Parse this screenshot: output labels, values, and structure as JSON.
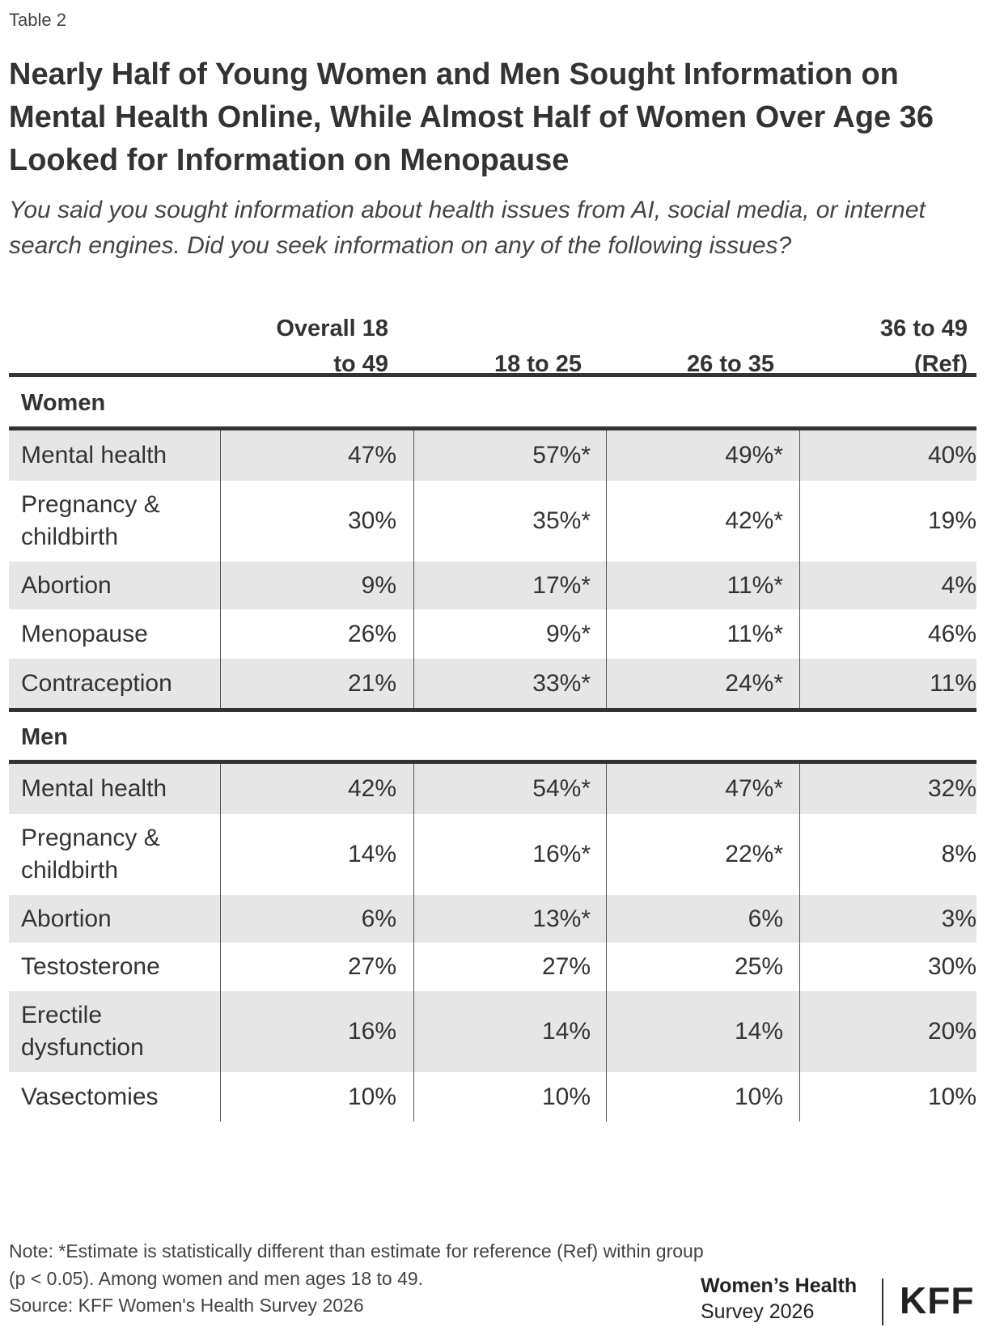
{
  "header": {
    "table_label": "Table 2",
    "title": "Nearly Half of Young Women and Men Sought Information on Mental Health Online, While Almost Half of Women Over Age 36 Looked for Information on Menopause",
    "subtitle": "You said you sought information about health issues from AI, social media, or internet search engines. Did you seek information on any of the following issues?"
  },
  "columns": [
    {
      "line1": "Overall 18",
      "line2": "to 49"
    },
    {
      "line1": "",
      "line2": "18 to 25"
    },
    {
      "line1": "",
      "line2": "26 to 35"
    },
    {
      "line1": "36 to 49",
      "line2": "(Ref)"
    }
  ],
  "chart_data": {
    "type": "table",
    "title": "Nearly Half of Young Women and Men Sought Information on Mental Health Online, While Almost Half of Women Over Age 36 Looked for Information on Menopause",
    "columns": [
      "Overall 18 to 49",
      "18 to 25",
      "26 to 35",
      "36 to 49 (Ref)"
    ],
    "groups": [
      {
        "name": "Women",
        "rows": [
          {
            "label": "Mental health",
            "values": [
              "47%",
              "57%*",
              "49%*",
              "40%"
            ]
          },
          {
            "label": "Pregnancy & childbirth",
            "values": [
              "30%",
              "35%*",
              "42%*",
              "19%"
            ]
          },
          {
            "label": "Abortion",
            "values": [
              "9%",
              "17%*",
              "11%*",
              "4%"
            ]
          },
          {
            "label": "Menopause",
            "values": [
              "26%",
              "9%*",
              "11%*",
              "46%"
            ]
          },
          {
            "label": "Contraception",
            "values": [
              "21%",
              "33%*",
              "24%*",
              "11%"
            ]
          }
        ]
      },
      {
        "name": "Men",
        "rows": [
          {
            "label": "Mental health",
            "values": [
              "42%",
              "54%*",
              "47%*",
              "32%"
            ]
          },
          {
            "label": "Pregnancy & childbirth",
            "values": [
              "14%",
              "16%*",
              "22%*",
              "8%"
            ]
          },
          {
            "label": "Abortion",
            "values": [
              "6%",
              "13%*",
              "6%",
              "3%"
            ]
          },
          {
            "label": "Testosterone",
            "values": [
              "27%",
              "27%",
              "25%",
              "30%"
            ]
          },
          {
            "label": "Erectile dysfunction",
            "values": [
              "16%",
              "14%",
              "14%",
              "20%"
            ]
          },
          {
            "label": "Vasectomies",
            "values": [
              "10%",
              "10%",
              "10%",
              "10%"
            ]
          }
        ]
      }
    ]
  },
  "footer": {
    "note": "Note: *Estimate is statistically different than estimate for reference (Ref) within group (p < 0.05). Among women and men ages 18 to 49.",
    "source": "Source: KFF Women's Health Survey 2026",
    "brand_line1": "Women’s Health",
    "brand_line2": "Survey 2026",
    "logo": "KFF"
  }
}
